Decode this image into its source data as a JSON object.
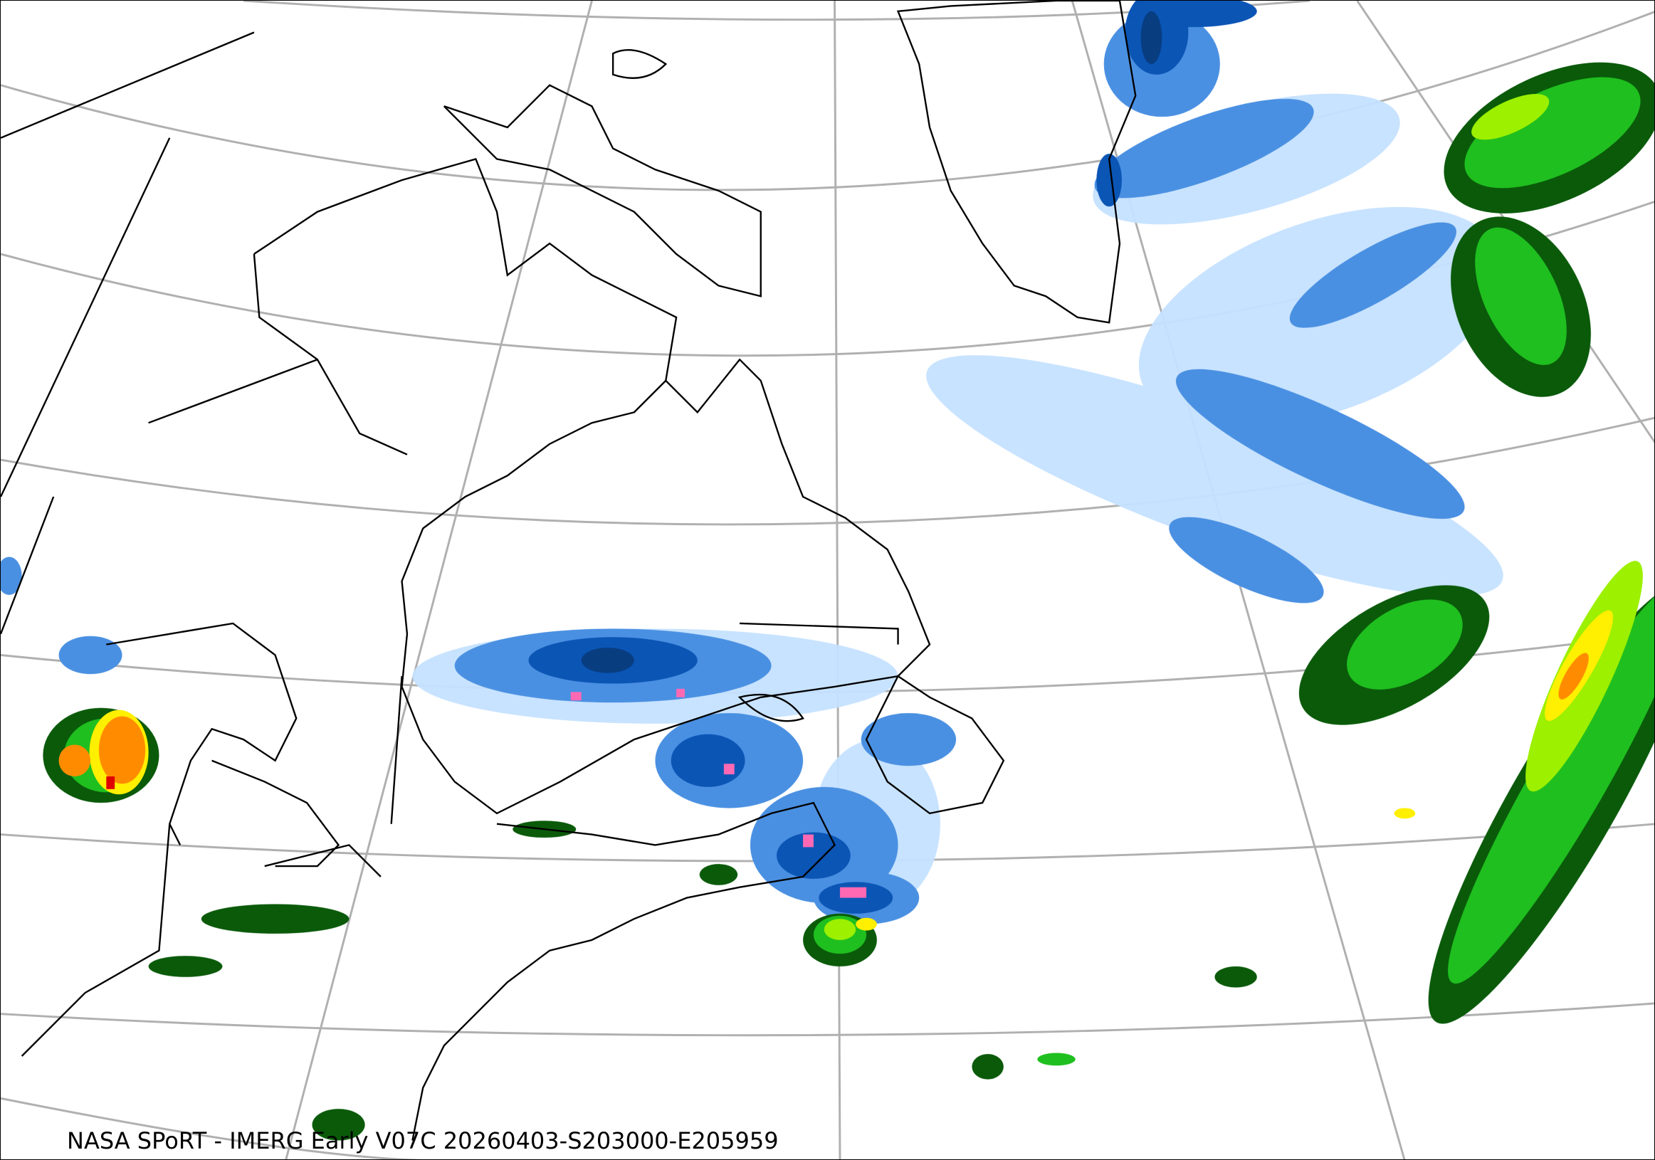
{
  "caption": "NASA SPoRT - IMERG Early V07C 20260403-S203000-E205959",
  "map": {
    "projection": "polar-conic",
    "region": "northeastern North America, Greenland and North Atlantic",
    "graticule_color": "#b0b0b0",
    "coastline_color": "#000000",
    "precip_colors": {
      "light_blue": "#c6e2ff",
      "blue": "#4a90e2",
      "dark_blue": "#0b55b5",
      "navy": "#083d80",
      "pink": "#ff69b4",
      "dark_green": "#0a5a0a",
      "green": "#1fbf1f",
      "lime": "#9cf000",
      "yellow": "#ffef00",
      "orange": "#ff8c00",
      "red": "#e00000"
    }
  }
}
